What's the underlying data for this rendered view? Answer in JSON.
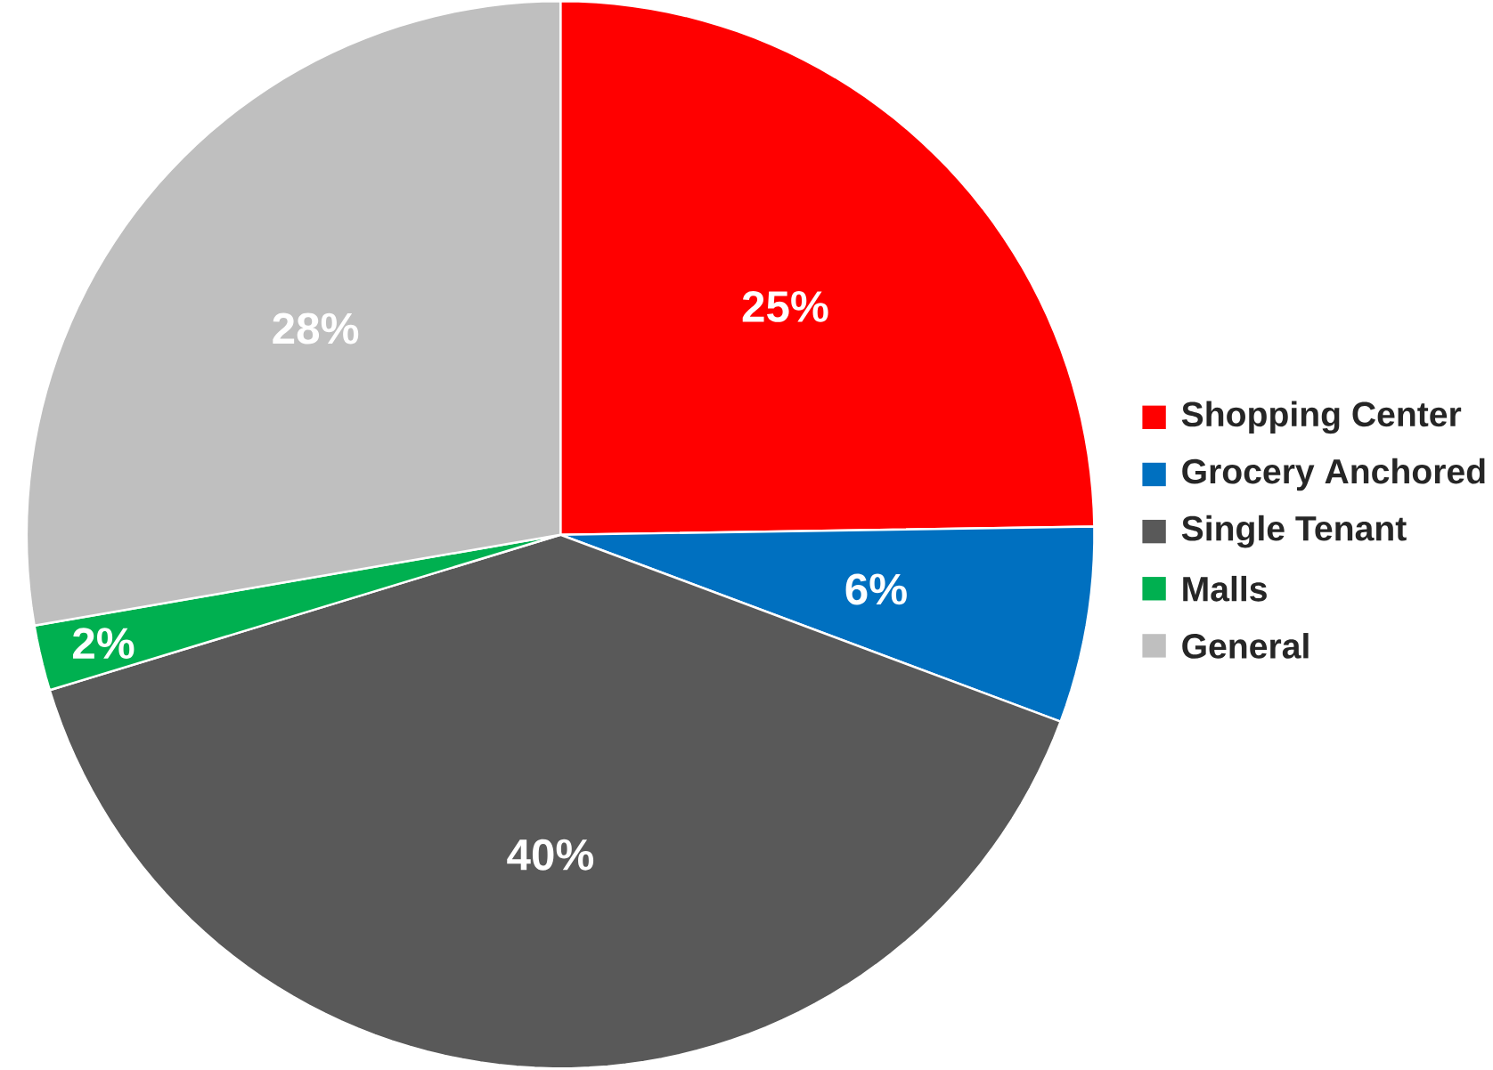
{
  "chart_data": {
    "type": "pie",
    "categories": [
      "Shopping Center",
      "Grocery Anchored",
      "Single Tenant",
      "Malls",
      "General"
    ],
    "values": [
      25,
      6,
      40,
      2,
      28
    ],
    "colors": [
      "#ff0000",
      "#0070c0",
      "#595959",
      "#00b050",
      "#bfbfbf"
    ],
    "value_labels": [
      "25%",
      "6%",
      "40%",
      "2%",
      "28%"
    ],
    "legend": "right"
  }
}
